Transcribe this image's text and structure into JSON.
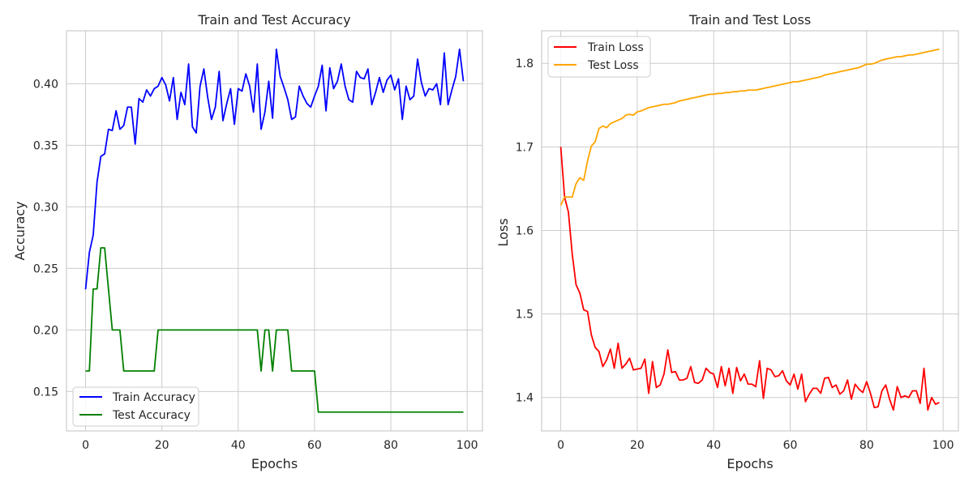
{
  "chart_data": [
    {
      "type": "line",
      "title": "Train and Test Accuracy",
      "xlabel": "Epochs",
      "ylabel": "Accuracy",
      "xlim": [
        -5,
        104
      ],
      "ylim": [
        0.118,
        0.443
      ],
      "xticks": [
        0,
        20,
        40,
        60,
        80,
        100
      ],
      "yticks": [
        0.15,
        0.2,
        0.25,
        0.3,
        0.35,
        0.4
      ],
      "ytick_labels": [
        "0.15",
        "0.20",
        "0.25",
        "0.30",
        "0.35",
        "0.40"
      ],
      "grid": true,
      "legend_position": "lower-left",
      "series": [
        {
          "name": "Train Accuracy",
          "color": "#0000ff",
          "values": [
            0.233,
            0.263,
            0.277,
            0.32,
            0.341,
            0.343,
            0.363,
            0.362,
            0.378,
            0.363,
            0.366,
            0.381,
            0.381,
            0.351,
            0.388,
            0.385,
            0.395,
            0.39,
            0.396,
            0.398,
            0.405,
            0.399,
            0.386,
            0.405,
            0.371,
            0.393,
            0.383,
            0.416,
            0.365,
            0.36,
            0.398,
            0.412,
            0.389,
            0.371,
            0.381,
            0.41,
            0.37,
            0.384,
            0.396,
            0.367,
            0.396,
            0.394,
            0.408,
            0.398,
            0.377,
            0.416,
            0.363,
            0.377,
            0.402,
            0.372,
            0.428,
            0.406,
            0.397,
            0.387,
            0.371,
            0.373,
            0.398,
            0.39,
            0.384,
            0.381,
            0.39,
            0.398,
            0.415,
            0.378,
            0.413,
            0.396,
            0.402,
            0.416,
            0.398,
            0.387,
            0.385,
            0.41,
            0.405,
            0.404,
            0.412,
            0.383,
            0.393,
            0.405,
            0.393,
            0.403,
            0.407,
            0.395,
            0.404,
            0.371,
            0.398,
            0.387,
            0.39,
            0.42,
            0.401,
            0.39,
            0.396,
            0.395,
            0.4,
            0.383,
            0.425,
            0.383,
            0.395,
            0.406,
            0.428,
            0.402
          ]
        },
        {
          "name": "Test Accuracy",
          "color": "#008000",
          "values": [
            0.1667,
            0.1667,
            0.2333,
            0.2333,
            0.2667,
            0.2667,
            0.2333,
            0.2,
            0.2,
            0.2,
            0.1667,
            0.1667,
            0.1667,
            0.1667,
            0.1667,
            0.1667,
            0.1667,
            0.1667,
            0.1667,
            0.2,
            0.2,
            0.2,
            0.2,
            0.2,
            0.2,
            0.2,
            0.2,
            0.2,
            0.2,
            0.2,
            0.2,
            0.2,
            0.2,
            0.2,
            0.2,
            0.2,
            0.2,
            0.2,
            0.2,
            0.2,
            0.2,
            0.2,
            0.2,
            0.2,
            0.2,
            0.2,
            0.1667,
            0.2,
            0.2,
            0.1667,
            0.2,
            0.2,
            0.2,
            0.2,
            0.1667,
            0.1667,
            0.1667,
            0.1667,
            0.1667,
            0.1667,
            0.1667,
            0.1333,
            0.1333,
            0.1333,
            0.1333,
            0.1333,
            0.1333,
            0.1333,
            0.1333,
            0.1333,
            0.1333,
            0.1333,
            0.1333,
            0.1333,
            0.1333,
            0.1333,
            0.1333,
            0.1333,
            0.1333,
            0.1333,
            0.1333,
            0.1333,
            0.1333,
            0.1333,
            0.1333,
            0.1333,
            0.1333,
            0.1333,
            0.1333,
            0.1333,
            0.1333,
            0.1333,
            0.1333,
            0.1333,
            0.1333,
            0.1333,
            0.1333,
            0.1333,
            0.1333,
            0.1333
          ]
        }
      ]
    },
    {
      "type": "line",
      "title": "Train and Test Loss",
      "xlabel": "Epochs",
      "ylabel": "Loss",
      "xlim": [
        -5,
        104
      ],
      "ylim": [
        1.36,
        1.839
      ],
      "xticks": [
        0,
        20,
        40,
        60,
        80,
        100
      ],
      "yticks": [
        1.4,
        1.5,
        1.6,
        1.7,
        1.8
      ],
      "ytick_labels": [
        "1.4",
        "1.5",
        "1.6",
        "1.7",
        "1.8"
      ],
      "grid": true,
      "legend_position": "upper-left",
      "series": [
        {
          "name": "Train Loss",
          "color": "#ff0000",
          "values": [
            1.7,
            1.64,
            1.622,
            1.572,
            1.535,
            1.525,
            1.505,
            1.503,
            1.475,
            1.46,
            1.455,
            1.437,
            1.445,
            1.458,
            1.435,
            1.465,
            1.435,
            1.44,
            1.447,
            1.433,
            1.434,
            1.435,
            1.446,
            1.405,
            1.443,
            1.412,
            1.415,
            1.428,
            1.457,
            1.43,
            1.431,
            1.421,
            1.421,
            1.423,
            1.437,
            1.418,
            1.417,
            1.421,
            1.435,
            1.43,
            1.428,
            1.412,
            1.437,
            1.414,
            1.435,
            1.405,
            1.436,
            1.42,
            1.428,
            1.416,
            1.416,
            1.413,
            1.444,
            1.399,
            1.435,
            1.433,
            1.425,
            1.426,
            1.432,
            1.42,
            1.415,
            1.428,
            1.41,
            1.428,
            1.395,
            1.404,
            1.411,
            1.411,
            1.405,
            1.423,
            1.424,
            1.412,
            1.415,
            1.404,
            1.408,
            1.421,
            1.398,
            1.416,
            1.41,
            1.406,
            1.419,
            1.405,
            1.388,
            1.389,
            1.408,
            1.415,
            1.398,
            1.385,
            1.413,
            1.4,
            1.402,
            1.4,
            1.408,
            1.408,
            1.393,
            1.435,
            1.385,
            1.4,
            1.392,
            1.394
          ]
        },
        {
          "name": "Test Loss",
          "color": "#ffa500",
          "values": [
            1.63,
            1.64,
            1.64,
            1.64,
            1.656,
            1.663,
            1.66,
            1.683,
            1.701,
            1.706,
            1.722,
            1.725,
            1.723,
            1.728,
            1.73,
            1.732,
            1.734,
            1.738,
            1.739,
            1.738,
            1.742,
            1.743,
            1.745,
            1.747,
            1.748,
            1.749,
            1.75,
            1.751,
            1.751,
            1.752,
            1.753,
            1.755,
            1.756,
            1.757,
            1.758,
            1.759,
            1.76,
            1.761,
            1.762,
            1.763,
            1.763,
            1.764,
            1.764,
            1.765,
            1.765,
            1.766,
            1.766,
            1.767,
            1.767,
            1.768,
            1.768,
            1.768,
            1.769,
            1.77,
            1.771,
            1.772,
            1.773,
            1.774,
            1.775,
            1.776,
            1.777,
            1.778,
            1.778,
            1.779,
            1.78,
            1.781,
            1.782,
            1.783,
            1.784,
            1.786,
            1.787,
            1.788,
            1.789,
            1.79,
            1.791,
            1.792,
            1.793,
            1.794,
            1.795,
            1.797,
            1.799,
            1.799,
            1.8,
            1.802,
            1.804,
            1.805,
            1.806,
            1.807,
            1.808,
            1.808,
            1.809,
            1.81,
            1.81,
            1.811,
            1.812,
            1.813,
            1.814,
            1.815,
            1.816,
            1.817
          ]
        }
      ]
    }
  ]
}
